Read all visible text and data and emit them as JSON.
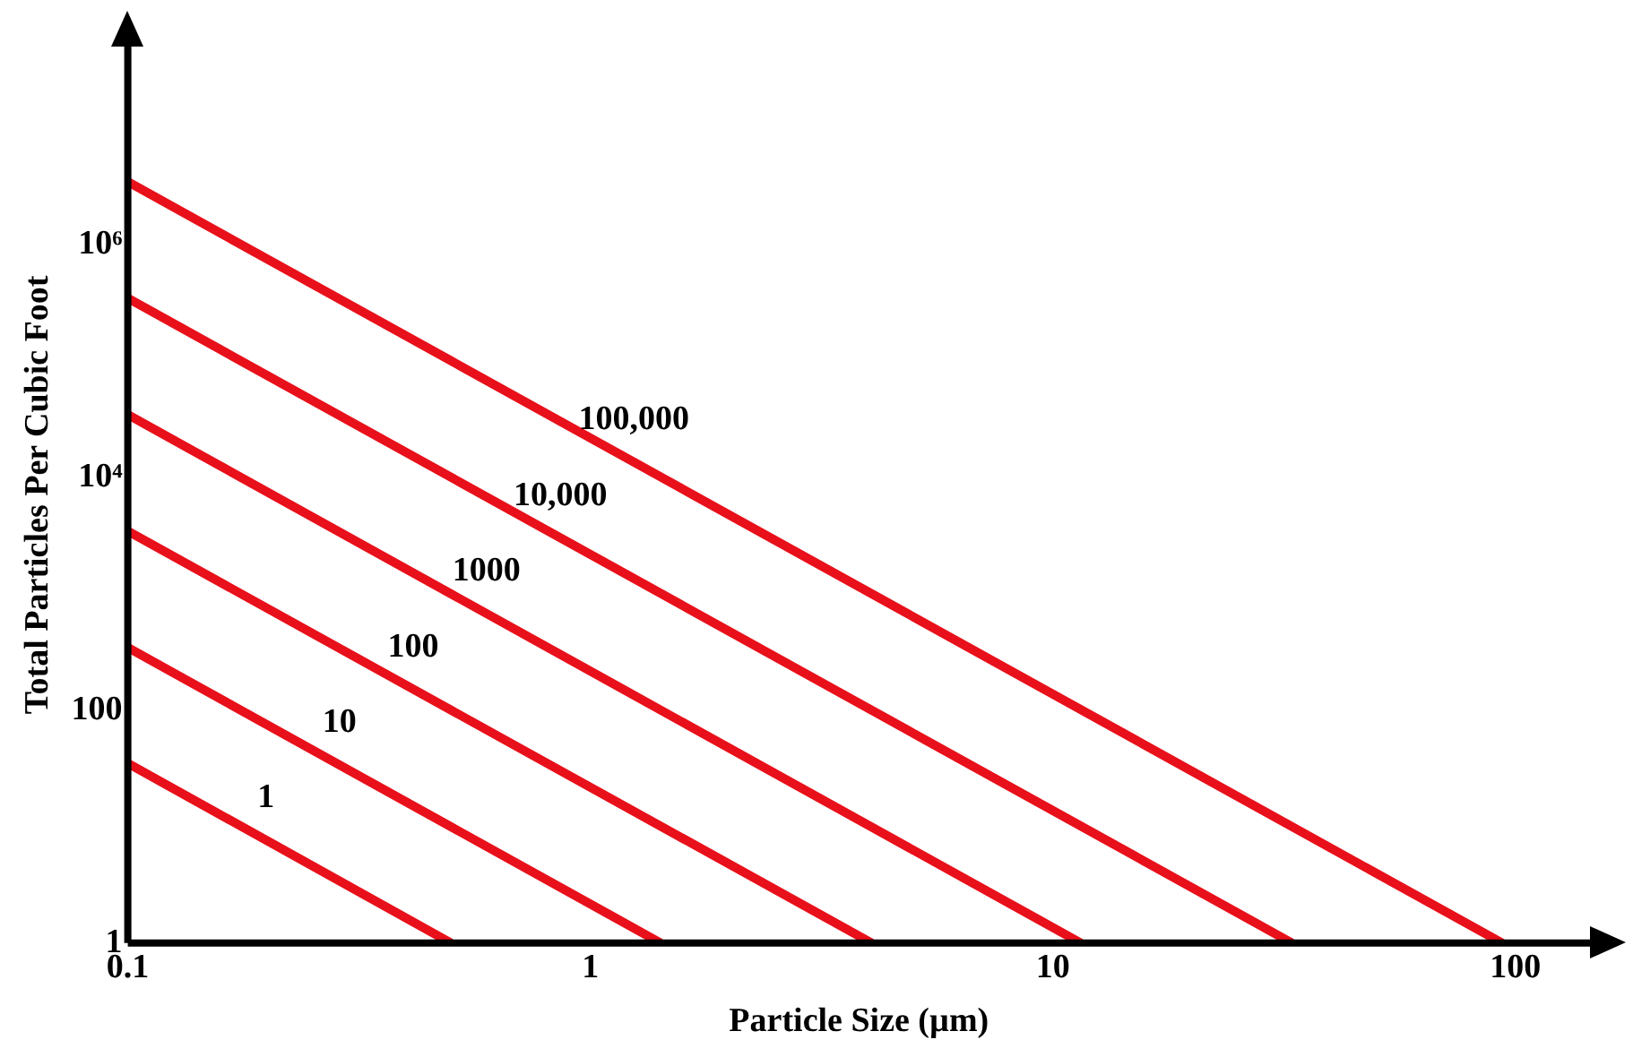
{
  "chart_data": {
    "type": "line",
    "xlabel": "Particle Size (µm)",
    "ylabel": "Total Particles Per Cubic Foot",
    "log": "xy",
    "grid": false,
    "legend": false,
    "marker": "none",
    "line_style": "solid",
    "xlim": [
      0.1,
      145
    ],
    "xticks": [
      0.1,
      1,
      10,
      100
    ],
    "ylim": [
      1,
      50000000
    ],
    "yticks": [
      1,
      100,
      {
        "value": 10000,
        "label": "10⁴"
      },
      {
        "value": 1000000,
        "label": "10⁶"
      }
    ],
    "series": [
      {
        "name": "1",
        "color": "#e8101a",
        "x": [
          0.1,
          0.5
        ],
        "values": [
          35,
          1
        ]
      },
      {
        "name": "10",
        "color": "#e8101a",
        "x": [
          0.1,
          1.42
        ],
        "values": [
          345,
          1
        ]
      },
      {
        "name": "100",
        "color": "#e8101a",
        "x": [
          0.1,
          4.06
        ],
        "values": [
          3450,
          1
        ]
      },
      {
        "name": "1000",
        "color": "#e8101a",
        "x": [
          0.1,
          11.5
        ],
        "values": [
          34500,
          1
        ]
      },
      {
        "name": "10,000",
        "color": "#e8101a",
        "x": [
          0.1,
          32.9
        ],
        "values": [
          345000,
          1
        ]
      },
      {
        "name": "100,000",
        "color": "#e8101a",
        "x": [
          0.1,
          93.7
        ],
        "values": [
          3450000,
          1
        ]
      }
    ]
  }
}
